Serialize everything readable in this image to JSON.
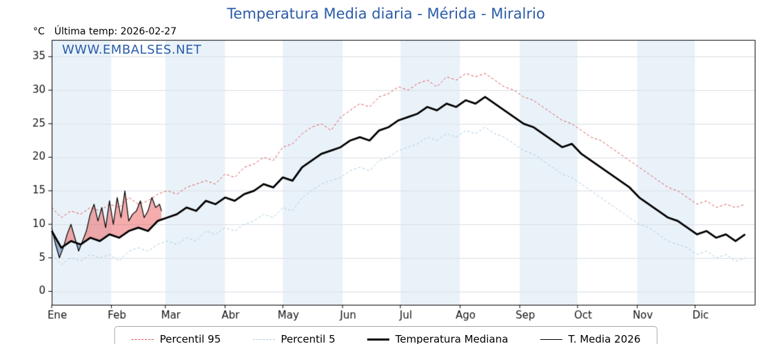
{
  "chart_data": {
    "type": "line",
    "title": "Temperatura Media diaria - Mérida - Miralrio",
    "unit": "°C",
    "last_temp": "Última temp: 2026-02-27",
    "watermark": "WWW.EMBALSES.NET",
    "ylim": [
      -2,
      37.5
    ],
    "y_ticks": [
      0,
      5,
      10,
      15,
      20,
      25,
      30,
      35
    ],
    "x_total_days": 365,
    "months": [
      {
        "label": "Ene",
        "start": 0
      },
      {
        "label": "Feb",
        "start": 31
      },
      {
        "label": "Mar",
        "start": 59
      },
      {
        "label": "Abr",
        "start": 90
      },
      {
        "label": "May",
        "start": 120
      },
      {
        "label": "Jun",
        "start": 151
      },
      {
        "label": "Jul",
        "start": 181
      },
      {
        "label": "Ago",
        "start": 212
      },
      {
        "label": "Sep",
        "start": 243
      },
      {
        "label": "Oct",
        "start": 273
      },
      {
        "label": "Nov",
        "start": 304
      },
      {
        "label": "Dic",
        "start": 334
      }
    ],
    "band_colors": [
      "#eaf2f9",
      "#ffffff"
    ],
    "grid_color": "#d9dee4",
    "series": [
      {
        "name": "Percentil 95",
        "color": "#d9534f",
        "style": "dashed",
        "width": 1,
        "x_start": 0,
        "x_step": 5,
        "values": [
          12.5,
          11,
          12,
          11.5,
          12.5,
          12,
          13,
          12.5,
          14,
          13,
          13.5,
          14.5,
          15,
          14.5,
          15.5,
          16,
          16.5,
          16,
          17.5,
          17,
          18.5,
          19,
          20,
          19.5,
          21.5,
          22,
          23.5,
          24.5,
          25,
          24,
          26,
          27,
          28,
          27.5,
          29,
          29.5,
          30.5,
          30,
          31,
          31.5,
          30.5,
          32,
          31.5,
          32.5,
          32,
          32.5,
          31.5,
          30.5,
          30,
          29,
          28.5,
          27.5,
          26.5,
          25.5,
          25,
          24,
          23,
          22.5,
          21.5,
          20.5,
          19.5,
          18.5,
          17.5,
          16.5,
          15.5,
          15,
          14,
          13,
          13.5,
          12.5,
          13,
          12.5,
          13
        ]
      },
      {
        "name": "Percentil 5",
        "color": "#a6cee3",
        "style": "dashed",
        "width": 1,
        "x_start": 0,
        "x_step": 5,
        "values": [
          5.5,
          4,
          5,
          4.5,
          5.5,
          5,
          5.5,
          4.5,
          6,
          6.5,
          6,
          7,
          7.5,
          7,
          8,
          7.5,
          9,
          8.5,
          9.5,
          9,
          10,
          10.5,
          11.5,
          11,
          12.5,
          12,
          14,
          15,
          16,
          16.5,
          17,
          18,
          18.5,
          18,
          19.5,
          20,
          21,
          21.5,
          22,
          23,
          22.5,
          23.5,
          23,
          24,
          23.5,
          24.5,
          23.5,
          23,
          22,
          21,
          20.5,
          19.5,
          18.5,
          17.5,
          17,
          16,
          15,
          14,
          13,
          12,
          11,
          10,
          9.5,
          8.5,
          7.5,
          7,
          6.5,
          5.5,
          6,
          5,
          5.5,
          4.5,
          5
        ]
      },
      {
        "name": "Temperatura Mediana",
        "color": "#000000",
        "style": "solid",
        "width": 2.8,
        "x_start": 0,
        "x_step": 5,
        "values": [
          9,
          6.5,
          7.5,
          7,
          8,
          7.5,
          8.5,
          8,
          9,
          9.5,
          9,
          10.5,
          11,
          11.5,
          12.5,
          12,
          13.5,
          13,
          14,
          13.5,
          14.5,
          15,
          16,
          15.5,
          17,
          16.5,
          18.5,
          19.5,
          20.5,
          21,
          21.5,
          22.5,
          23,
          22.5,
          24,
          24.5,
          25.5,
          26,
          26.5,
          27.5,
          27,
          28,
          27.5,
          28.5,
          28,
          29,
          28,
          27,
          26,
          25,
          24.5,
          23.5,
          22.5,
          21.5,
          22,
          20.5,
          19.5,
          18.5,
          17.5,
          16.5,
          15.5,
          14,
          13,
          12,
          11,
          10.5,
          9.5,
          8.5,
          9,
          8,
          8.5,
          7.5,
          8.5
        ]
      },
      {
        "name": "T. Media 2026",
        "color": "#000000",
        "style": "solid",
        "width": 1.2,
        "x": [
          0,
          2,
          4,
          6,
          8,
          10,
          12,
          14,
          16,
          18,
          20,
          22,
          24,
          26,
          28,
          30,
          32,
          34,
          36,
          38,
          40,
          42,
          44,
          46,
          48,
          50,
          52,
          54,
          56,
          57
        ],
        "values": [
          9.5,
          7,
          5,
          6.5,
          8.5,
          10,
          8,
          6,
          7.5,
          9,
          11.5,
          13,
          10.5,
          12.5,
          9.5,
          13.5,
          10,
          14,
          11,
          15,
          10.5,
          11.5,
          12,
          13.5,
          11,
          12,
          14,
          12.5,
          13,
          12
        ]
      }
    ],
    "fills": {
      "between": [
        "T. Media 2026",
        "Temperatura Mediana"
      ],
      "above_color": "rgba(233,90,90,0.50)",
      "below_color": "rgba(95,135,180,0.60)"
    },
    "legend": [
      "Percentil 95",
      "Percentil 5",
      "Temperatura Mediana",
      "T. Media 2026"
    ]
  }
}
